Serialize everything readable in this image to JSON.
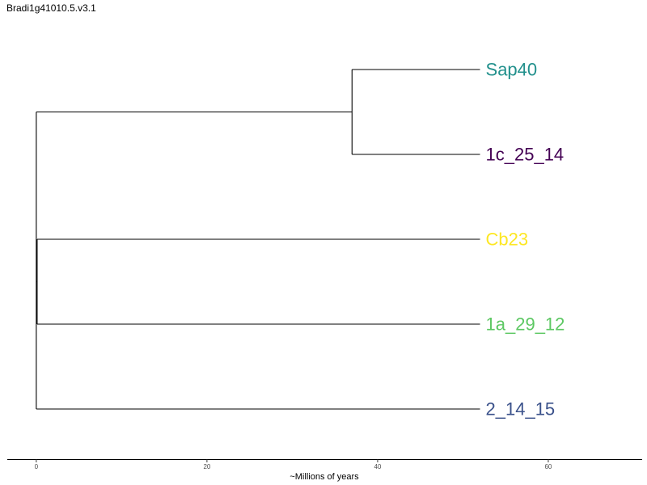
{
  "title": "Bradi1g41010.5.v3.1",
  "chart_data": {
    "type": "dendrogram",
    "title": "Bradi1g41010.5.v3.1",
    "xlabel": "~Millions of years",
    "ylabel": "",
    "xlim": [
      -3.4,
      71
    ],
    "x_ticks": [
      0,
      20,
      40,
      60
    ],
    "x_tick_labels": [
      "0",
      "20",
      "40",
      "60"
    ],
    "grid": false,
    "leaves": [
      {
        "name": "Sap40",
        "color": "#21908C"
      },
      {
        "name": "1c_25_14",
        "color": "#440154"
      },
      {
        "name": "Cb23",
        "color": "#FDE725"
      },
      {
        "name": "1a_29_12",
        "color": "#5DC863"
      },
      {
        "name": "2_14_15",
        "color": "#3B528B"
      }
    ],
    "leaf_depth": 52,
    "clades": [
      {
        "members": [
          "Sap40",
          "1c_25_14"
        ],
        "depth": 37
      },
      {
        "members": [
          "Cb23",
          "1a_29_12"
        ],
        "depth": 0.1
      },
      {
        "members": [
          "Sap40",
          "1c_25_14",
          "Cb23",
          "1a_29_12",
          "2_14_15"
        ],
        "depth": 0
      }
    ]
  }
}
